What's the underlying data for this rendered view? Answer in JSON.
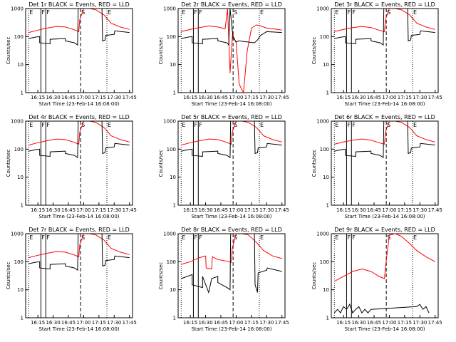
{
  "chart_data": [
    {
      "type": "line",
      "title": "Det 1r BLACK = Events, RED = LLD",
      "xlabel": "Start Time (23-Feb-14 16:08:00)",
      "ylabel": "Counts/sec",
      "ylim": [
        1,
        1000
      ],
      "yscale": "log",
      "x_ticks": [
        "16:15",
        "16:30",
        "16:45",
        "17:00",
        "17:15",
        "17:30",
        "17:45"
      ],
      "y_ticks": [
        "1",
        "10",
        "100",
        "1000"
      ],
      "series": [
        {
          "name": "LLD",
          "color": "#ff0000",
          "x": [
            16.1,
            16.25,
            16.4,
            16.55,
            16.7,
            16.83,
            16.92,
            16.935,
            17.0,
            17.1,
            17.2,
            17.33,
            17.45,
            17.6,
            17.75
          ],
          "y": [
            140,
            170,
            200,
            230,
            220,
            180,
            150,
            400,
            1000,
            1000,
            900,
            600,
            300,
            220,
            180
          ]
        },
        {
          "name": "Events",
          "color": "#000000",
          "x": [
            16.1,
            16.2,
            16.28,
            16.28,
            16.45,
            16.45,
            16.7,
            16.7,
            16.85,
            16.9,
            16.91,
            17.3,
            17.31,
            17.35,
            17.36,
            17.5,
            17.51,
            17.75
          ],
          "y": [
            85,
            95,
            100,
            60,
            55,
            80,
            85,
            70,
            60,
            50,
            1000,
            1000,
            70,
            75,
            110,
            120,
            160,
            140
          ]
        }
      ]
    },
    {
      "type": "line",
      "title": "Det 2r BLACK = Events, RED = LLD",
      "xlabel": "Start Time (23-Feb-14 16:08:00)",
      "ylabel": "Counts/sec",
      "ylim": [
        1,
        1000
      ],
      "yscale": "log",
      "x_ticks": [
        "16:15",
        "16:30",
        "16:45",
        "17:00",
        "17:15",
        "17:30",
        "17:45"
      ],
      "y_ticks": [
        "1",
        "10",
        "100",
        "1000"
      ],
      "series": [
        {
          "name": "LLD",
          "color": "#ff0000",
          "x": [
            16.1,
            16.25,
            16.4,
            16.55,
            16.7,
            16.82,
            16.86,
            16.9,
            16.94,
            17.0,
            17.05,
            17.12,
            17.18,
            17.25,
            17.33,
            17.4,
            17.5,
            17.6,
            17.75
          ],
          "y": [
            150,
            180,
            210,
            240,
            220,
            190,
            1000,
            5,
            120,
            60,
            2,
            1,
            30,
            200,
            260,
            240,
            200,
            190,
            170
          ]
        },
        {
          "name": "Events",
          "color": "#000000",
          "x": [
            16.1,
            16.2,
            16.28,
            16.28,
            16.45,
            16.45,
            16.7,
            16.7,
            16.85,
            16.88,
            16.9,
            16.95,
            17.0,
            17.05,
            17.3,
            17.35,
            17.4,
            17.5,
            17.75
          ],
          "y": [
            85,
            95,
            100,
            60,
            55,
            80,
            85,
            70,
            60,
            50,
            1000,
            90,
            65,
            70,
            60,
            75,
            110,
            150,
            140
          ]
        }
      ]
    },
    {
      "type": "line",
      "title": "Det 3r BLACK = Events, RED = LLD",
      "xlabel": "Start Time (23-Feb-14 16:08:00)",
      "ylabel": "Counts/sec",
      "ylim": [
        1,
        1000
      ],
      "yscale": "log",
      "x_ticks": [
        "16:15",
        "16:30",
        "16:45",
        "17:00",
        "17:15",
        "17:30",
        "17:45"
      ],
      "y_ticks": [
        "1",
        "10",
        "100",
        "1000"
      ],
      "series": [
        {
          "name": "LLD",
          "color": "#ff0000",
          "x": [
            16.1,
            16.25,
            16.4,
            16.55,
            16.7,
            16.83,
            16.92,
            16.935,
            17.0,
            17.1,
            17.2,
            17.33,
            17.45,
            17.6,
            17.75
          ],
          "y": [
            150,
            180,
            210,
            230,
            210,
            170,
            150,
            400,
            1000,
            1000,
            900,
            600,
            300,
            220,
            180
          ]
        },
        {
          "name": "Events",
          "color": "#000000",
          "x": [
            16.1,
            16.2,
            16.28,
            16.28,
            16.45,
            16.45,
            16.7,
            16.7,
            16.85,
            16.9,
            16.91,
            17.3,
            17.31,
            17.35,
            17.36,
            17.5,
            17.51,
            17.75
          ],
          "y": [
            85,
            95,
            100,
            60,
            55,
            80,
            85,
            70,
            60,
            50,
            1000,
            1000,
            70,
            75,
            110,
            120,
            160,
            140
          ]
        }
      ]
    },
    {
      "type": "line",
      "title": "Det 4r BLACK = Events, RED = LLD",
      "xlabel": "Start Time (23-Feb-14 16:08:00)",
      "ylabel": "Counts/sec",
      "ylim": [
        1,
        1000
      ],
      "yscale": "log",
      "x_ticks": [
        "16:15",
        "16:30",
        "16:45",
        "17:00",
        "17:15",
        "17:30",
        "17:45"
      ],
      "y_ticks": [
        "1",
        "10",
        "100",
        "1000"
      ],
      "series": [
        {
          "name": "LLD",
          "color": "#ff0000",
          "x": [
            16.1,
            16.25,
            16.4,
            16.55,
            16.7,
            16.83,
            16.92,
            16.935,
            17.0,
            17.1,
            17.2,
            17.33,
            17.45,
            17.6,
            17.75
          ],
          "y": [
            140,
            170,
            200,
            230,
            220,
            180,
            150,
            400,
            1000,
            1000,
            900,
            600,
            300,
            220,
            180
          ]
        },
        {
          "name": "Events",
          "color": "#000000",
          "x": [
            16.1,
            16.2,
            16.28,
            16.28,
            16.45,
            16.45,
            16.7,
            16.7,
            16.85,
            16.9,
            16.91,
            17.3,
            17.31,
            17.35,
            17.36,
            17.5,
            17.51,
            17.75
          ],
          "y": [
            85,
            95,
            100,
            60,
            55,
            80,
            85,
            70,
            60,
            50,
            1000,
            1000,
            70,
            75,
            110,
            120,
            160,
            140
          ]
        }
      ]
    },
    {
      "type": "line",
      "title": "Det 5r BLACK = Events, RED = LLD",
      "xlabel": "Start Time (23-Feb-14 16:08:00)",
      "ylabel": "Counts/sec",
      "ylim": [
        1,
        1000
      ],
      "yscale": "log",
      "x_ticks": [
        "16:15",
        "16:30",
        "16:45",
        "17:00",
        "17:15",
        "17:30",
        "17:45"
      ],
      "y_ticks": [
        "1",
        "10",
        "100",
        "1000"
      ],
      "series": [
        {
          "name": "LLD",
          "color": "#ff0000",
          "x": [
            16.1,
            16.25,
            16.4,
            16.55,
            16.7,
            16.83,
            16.92,
            16.935,
            17.0,
            17.1,
            17.2,
            17.33,
            17.45,
            17.6,
            17.75
          ],
          "y": [
            140,
            170,
            200,
            230,
            220,
            180,
            150,
            400,
            1000,
            1000,
            900,
            600,
            300,
            220,
            180
          ]
        },
        {
          "name": "Events",
          "color": "#000000",
          "x": [
            16.1,
            16.2,
            16.28,
            16.28,
            16.45,
            16.45,
            16.7,
            16.7,
            16.85,
            16.9,
            16.91,
            17.3,
            17.31,
            17.35,
            17.36,
            17.5,
            17.51,
            17.75
          ],
          "y": [
            85,
            95,
            100,
            60,
            55,
            80,
            85,
            70,
            60,
            50,
            1000,
            1000,
            70,
            75,
            110,
            120,
            160,
            140
          ]
        }
      ]
    },
    {
      "type": "line",
      "title": "Det 6r BLACK = Events, RED = LLD",
      "xlabel": "Start Time (23-Feb-14 16:08:00)",
      "ylabel": "Counts/sec",
      "ylim": [
        1,
        1000
      ],
      "yscale": "log",
      "x_ticks": [
        "16:15",
        "16:30",
        "16:45",
        "17:00",
        "17:15",
        "17:30",
        "17:45"
      ],
      "y_ticks": [
        "1",
        "10",
        "100",
        "1000"
      ],
      "series": [
        {
          "name": "LLD",
          "color": "#ff0000",
          "x": [
            16.1,
            16.25,
            16.4,
            16.55,
            16.7,
            16.83,
            16.92,
            16.935,
            17.0,
            17.1,
            17.2,
            17.33,
            17.45,
            17.6,
            17.75
          ],
          "y": [
            150,
            180,
            210,
            230,
            210,
            170,
            150,
            400,
            1000,
            1000,
            900,
            600,
            300,
            220,
            180
          ]
        },
        {
          "name": "Events",
          "color": "#000000",
          "x": [
            16.1,
            16.2,
            16.28,
            16.28,
            16.45,
            16.45,
            16.7,
            16.7,
            16.85,
            16.9,
            16.91,
            17.3,
            17.31,
            17.35,
            17.36,
            17.5,
            17.51,
            17.75
          ],
          "y": [
            85,
            95,
            100,
            60,
            55,
            80,
            85,
            70,
            60,
            50,
            1000,
            1000,
            70,
            75,
            110,
            120,
            160,
            140
          ]
        }
      ]
    },
    {
      "type": "line",
      "title": "Det 7r BLACK = Events, RED = LLD",
      "xlabel": "Start Time (23-Feb-14 16:08:00)",
      "ylabel": "Counts/sec",
      "ylim": [
        1,
        1000
      ],
      "yscale": "log",
      "x_ticks": [
        "16:15",
        "16:30",
        "16:45",
        "17:00",
        "17:15",
        "17:30",
        "17:45"
      ],
      "y_ticks": [
        "1",
        "10",
        "100",
        "1000"
      ],
      "series": [
        {
          "name": "LLD",
          "color": "#ff0000",
          "x": [
            16.1,
            16.25,
            16.4,
            16.55,
            16.7,
            16.83,
            16.92,
            16.935,
            17.0,
            17.1,
            17.2,
            17.33,
            17.45,
            17.6,
            17.75
          ],
          "y": [
            140,
            170,
            200,
            230,
            220,
            180,
            150,
            400,
            1000,
            1000,
            900,
            600,
            300,
            220,
            180
          ]
        },
        {
          "name": "Events",
          "color": "#000000",
          "x": [
            16.1,
            16.2,
            16.28,
            16.28,
            16.45,
            16.45,
            16.7,
            16.7,
            16.85,
            16.9,
            16.91,
            17.3,
            17.31,
            17.35,
            17.36,
            17.5,
            17.51,
            17.75
          ],
          "y": [
            85,
            95,
            100,
            60,
            55,
            80,
            85,
            70,
            60,
            50,
            1000,
            1000,
            70,
            75,
            110,
            120,
            160,
            140
          ]
        }
      ]
    },
    {
      "type": "line",
      "title": "Det 8r BLACK = Events, RED = LLD",
      "xlabel": "Start Time (23-Feb-14 16:08:00)",
      "ylabel": "Counts/sec",
      "ylim": [
        1,
        1000
      ],
      "yscale": "log",
      "x_ticks": [
        "16:15",
        "16:30",
        "16:45",
        "17:00",
        "17:15",
        "17:30",
        "17:45"
      ],
      "y_ticks": [
        "1",
        "10",
        "100",
        "1000"
      ],
      "series": [
        {
          "name": "LLD",
          "color": "#ff0000",
          "x": [
            16.1,
            16.25,
            16.4,
            16.5,
            16.51,
            16.6,
            16.61,
            16.7,
            16.8,
            16.88,
            16.92,
            16.935,
            17.0,
            17.1,
            17.2,
            17.33,
            17.45,
            17.6,
            17.75
          ],
          "y": [
            80,
            100,
            140,
            160,
            60,
            55,
            150,
            120,
            110,
            100,
            95,
            300,
            1000,
            1000,
            900,
            500,
            250,
            160,
            130
          ]
        },
        {
          "name": "Events",
          "color": "#000000",
          "x": [
            16.1,
            16.2,
            16.28,
            16.28,
            16.45,
            16.45,
            16.55,
            16.6,
            16.7,
            16.7,
            16.85,
            16.9,
            16.91,
            17.3,
            17.31,
            17.35,
            17.36,
            17.5,
            17.51,
            17.75
          ],
          "y": [
            25,
            30,
            35,
            15,
            12,
            30,
            8,
            25,
            30,
            18,
            12,
            10,
            1000,
            1000,
            15,
            8,
            40,
            50,
            60,
            45
          ]
        }
      ]
    },
    {
      "type": "line",
      "title": "Det 9r BLACK = Events, RED = LLD",
      "xlabel": "Start Time (23-Feb-14 16:08:00)",
      "ylabel": "Counts/sec",
      "ylim": [
        1,
        1000
      ],
      "yscale": "log",
      "x_ticks": [
        "16:15",
        "16:30",
        "16:45",
        "17:00",
        "17:15",
        "17:30",
        "17:45"
      ],
      "y_ticks": [
        "1",
        "10",
        "100",
        "1000"
      ],
      "series": [
        {
          "name": "LLD",
          "color": "#ff0000",
          "x": [
            16.1,
            16.25,
            16.4,
            16.55,
            16.7,
            16.83,
            16.92,
            16.935,
            17.0,
            17.1,
            17.2,
            17.33,
            17.45,
            17.6,
            17.75
          ],
          "y": [
            20,
            30,
            45,
            55,
            45,
            30,
            25,
            60,
            900,
            1000,
            800,
            450,
            250,
            150,
            100
          ]
        },
        {
          "name": "Events",
          "color": "#000000",
          "x": [
            16.1,
            16.15,
            16.2,
            16.25,
            16.3,
            16.35,
            16.4,
            16.45,
            16.5,
            16.55,
            16.6,
            16.65,
            16.7,
            17.45,
            17.5,
            17.55,
            17.6,
            17.65
          ],
          "y": [
            1.5,
            2,
            1.5,
            2.5,
            2,
            3,
            1.5,
            2,
            2.5,
            1.5,
            2,
            1.5,
            2,
            2.5,
            3,
            2,
            2.5,
            1.5
          ]
        }
      ]
    }
  ],
  "markers": {
    "labels": [
      "E",
      "F",
      "F",
      "S",
      "E"
    ],
    "x": [
      16.1,
      16.3,
      16.38,
      16.95,
      17.38
    ]
  }
}
